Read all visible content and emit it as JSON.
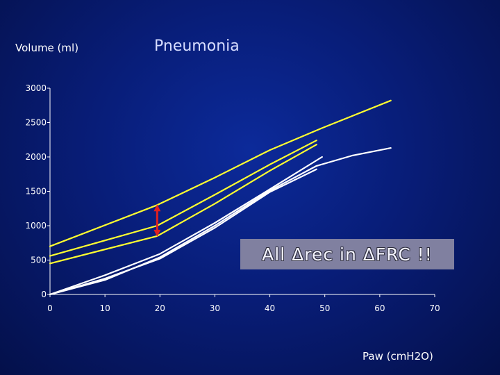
{
  "chart_data": {
    "type": "line",
    "title": "Pneumonia",
    "xlabel": "Paw (cmH2O)",
    "ylabel": "Volume (ml)",
    "xlim": [
      0,
      70
    ],
    "ylim": [
      0,
      3000
    ],
    "x_ticks": [
      0,
      10,
      20,
      30,
      40,
      50,
      60,
      70
    ],
    "y_ticks": [
      0,
      500,
      1000,
      1500,
      2000,
      2500,
      3000
    ],
    "grid": false,
    "annotation": "All Δrec in ΔFRC !!",
    "colors": {
      "yellow": "#ffff30",
      "white": "#ffffff",
      "arrow": "#e02020"
    },
    "series": [
      {
        "color_key": "yellow",
        "x": [
          0,
          19.5,
          30,
          40,
          49.5,
          62
        ],
        "y": [
          700,
          1300,
          1700,
          2100,
          2420,
          2820
        ]
      },
      {
        "color_key": "yellow",
        "x": [
          0,
          19.5,
          30,
          40,
          48.5
        ],
        "y": [
          560,
          1000,
          1450,
          1890,
          2240
        ]
      },
      {
        "color_key": "yellow",
        "x": [
          0,
          19.5,
          30,
          40,
          48.5
        ],
        "y": [
          450,
          850,
          1320,
          1800,
          2180
        ]
      },
      {
        "color_key": "white",
        "x": [
          0,
          10,
          20,
          30,
          40,
          48.5,
          55,
          62
        ],
        "y": [
          0,
          210,
          540,
          1000,
          1510,
          1870,
          2020,
          2130
        ]
      },
      {
        "color_key": "white",
        "x": [
          0,
          10,
          20,
          30,
          40,
          48.5
        ],
        "y": [
          0,
          230,
          520,
          970,
          1490,
          1820
        ]
      },
      {
        "color_key": "white",
        "x": [
          0,
          10,
          20,
          30,
          40,
          49.5
        ],
        "y": [
          0,
          280,
          590,
          1040,
          1530,
          2000
        ]
      }
    ],
    "arrow": {
      "x": 19.5,
      "y_from": 850,
      "y_to": 1300
    }
  }
}
